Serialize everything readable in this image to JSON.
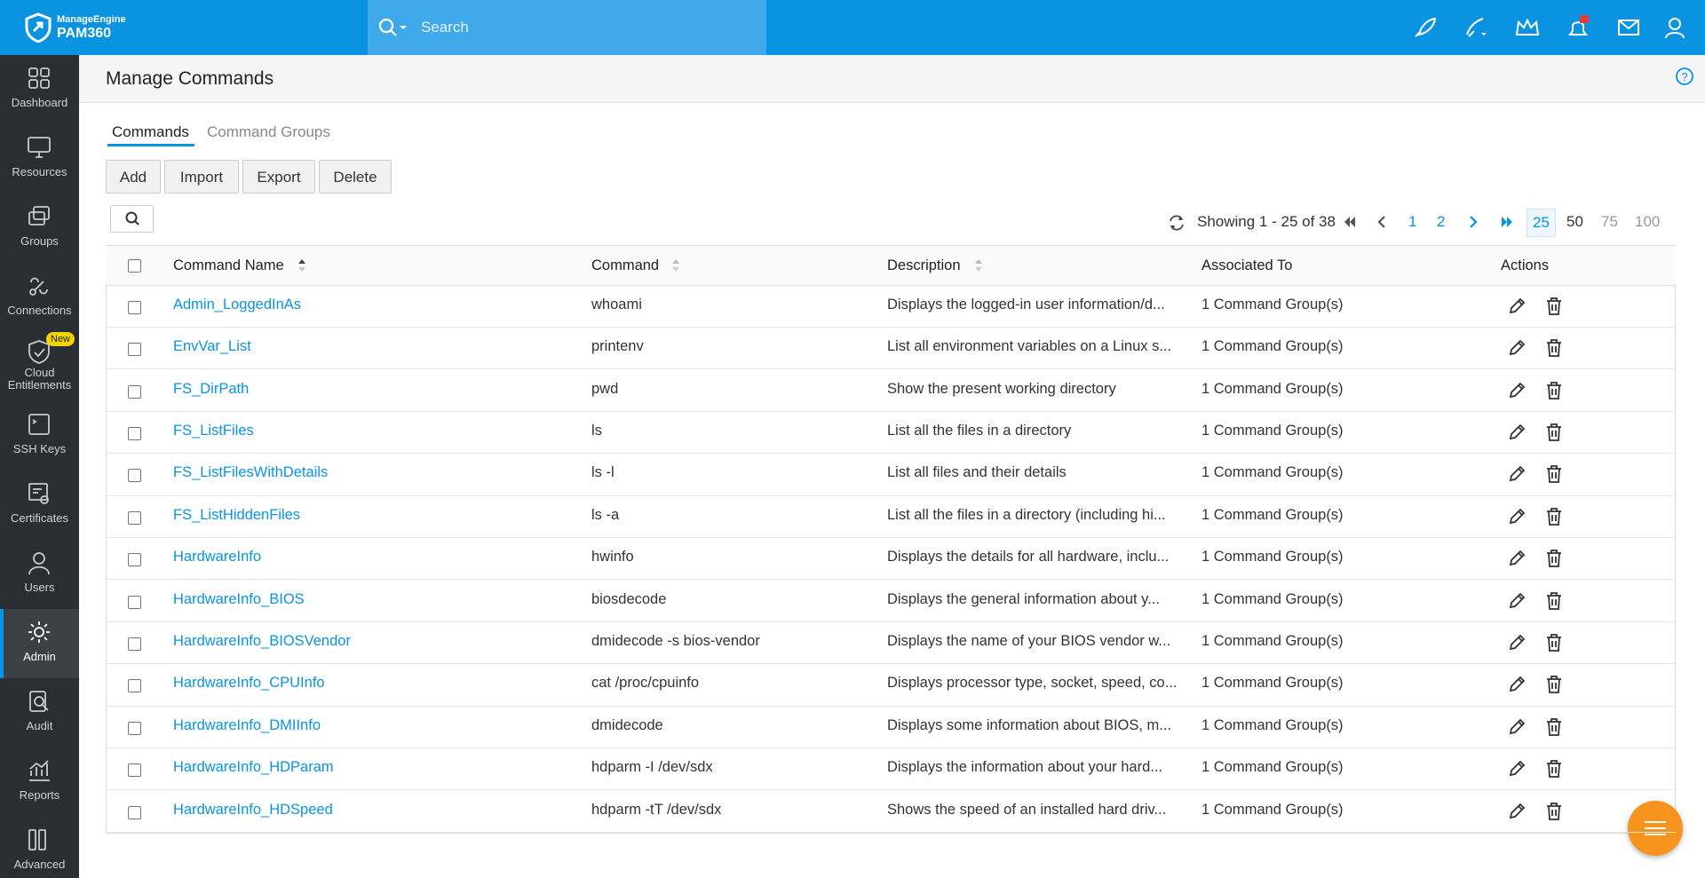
{
  "header": {
    "brand_top": "ManageEngine",
    "brand": "PAM360",
    "search_placeholder": "Search"
  },
  "sidebar": [
    "Dashboard",
    "Resources",
    "Groups",
    "Connections",
    "Cloud Entitlements",
    "SSH Keys",
    "Certificates",
    "Users",
    "Admin",
    "Audit",
    "Reports",
    "Advanced"
  ],
  "sidebar_badge": "New",
  "page_title": "Manage Commands",
  "tabs": [
    "Commands",
    "Command Groups"
  ],
  "buttons": [
    "Add",
    "Import",
    "Export",
    "Delete"
  ],
  "pagination": {
    "summary": "Showing 1 - 25 of 38",
    "pages": [
      "1",
      "2"
    ],
    "page_sizes": [
      "25",
      "50",
      "75",
      "100"
    ]
  },
  "table": {
    "columns": [
      "Command Name",
      "Command",
      "Description",
      "Associated To",
      "Actions"
    ],
    "rows": [
      [
        "Admin_LoggedInAs",
        "whoami",
        "Displays the logged-in user information/d...",
        "1 Command Group(s)"
      ],
      [
        "EnvVar_List",
        "printenv",
        "List all environment variables on a Linux s...",
        "1 Command Group(s)"
      ],
      [
        "FS_DirPath",
        "pwd",
        "Show the present working directory",
        "1 Command Group(s)"
      ],
      [
        "FS_ListFiles",
        "ls",
        "List all the files in a directory",
        "1 Command Group(s)"
      ],
      [
        "FS_ListFilesWithDetails",
        "ls -l",
        "List all files and their details",
        "1 Command Group(s)"
      ],
      [
        "FS_ListHiddenFiles",
        "ls -a",
        "List all the files in a directory (including hi...",
        "1 Command Group(s)"
      ],
      [
        "HardwareInfo",
        "hwinfo",
        "Displays the details for all hardware, inclu...",
        "1 Command Group(s)"
      ],
      [
        "HardwareInfo_BIOS",
        "biosdecode",
        "Displays the general information about y...",
        "1 Command Group(s)"
      ],
      [
        "HardwareInfo_BIOSVendor",
        "dmidecode -s bios-vendor",
        "Displays the name of your BIOS vendor w...",
        "1 Command Group(s)"
      ],
      [
        "HardwareInfo_CPUInfo",
        "cat /proc/cpuinfo",
        "Displays processor type, socket, speed, co...",
        "1 Command Group(s)"
      ],
      [
        "HardwareInfo_DMIInfo",
        "dmidecode",
        "Displays some information about BIOS, m...",
        "1 Command Group(s)"
      ],
      [
        "HardwareInfo_HDParam",
        "hdparm -I /dev/sdx",
        "Displays the information about your hard...",
        "1 Command Group(s)"
      ],
      [
        "HardwareInfo_HDSpeed",
        "hdparm -tT /dev/sdx",
        "Shows the speed of an installed hard driv...",
        "1 Command Group(s)"
      ]
    ]
  }
}
